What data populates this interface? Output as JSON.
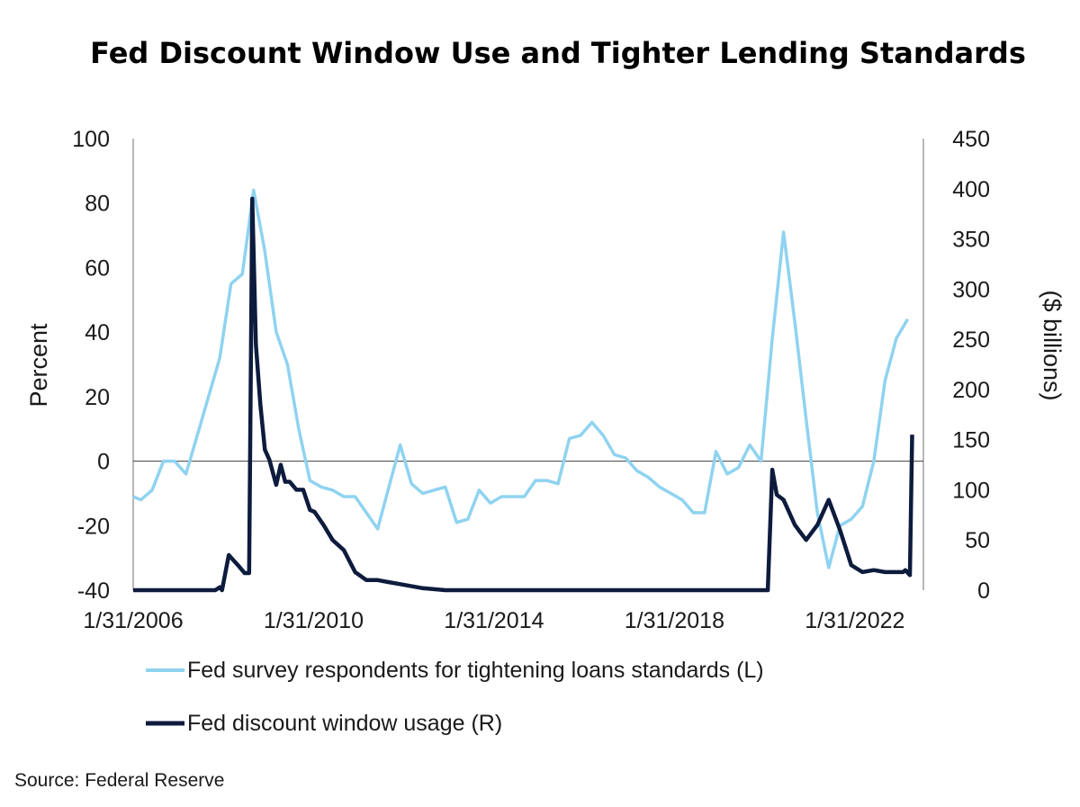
{
  "chart_data": {
    "type": "line",
    "title": "Fed Discount Window Use and Tighter Lending Standards",
    "ylabel_left": "Percent",
    "ylabel_right": "($ billions)",
    "x_ticks": [
      "1/31/2006",
      "1/31/2010",
      "1/31/2014",
      "1/31/2018",
      "1/31/2022"
    ],
    "x_tick_years": [
      2006.08,
      2010.08,
      2014.08,
      2018.08,
      2022.08
    ],
    "xlim": [
      2006.08,
      2023.6
    ],
    "ylim_left": [
      -40,
      100
    ],
    "yticks_left": [
      -40,
      -20,
      0,
      20,
      40,
      60,
      80,
      100
    ],
    "ylim_right": [
      0,
      450
    ],
    "yticks_right": [
      0,
      50,
      100,
      150,
      200,
      250,
      300,
      350,
      400,
      450
    ],
    "series": [
      {
        "name": "Fed survey respondents for tightening loans standards (L)",
        "axis": "left",
        "color": "#8fd3f0",
        "x": [
          2006.08,
          2006.25,
          2006.5,
          2006.75,
          2007.0,
          2007.25,
          2007.5,
          2007.75,
          2008.0,
          2008.25,
          2008.5,
          2008.75,
          2009.0,
          2009.25,
          2009.5,
          2009.75,
          2010.0,
          2010.25,
          2010.5,
          2010.75,
          2011.0,
          2011.25,
          2011.5,
          2011.75,
          2012.0,
          2012.25,
          2012.5,
          2012.75,
          2013.0,
          2013.25,
          2013.5,
          2013.75,
          2014.0,
          2014.25,
          2014.5,
          2014.75,
          2015.0,
          2015.25,
          2015.5,
          2015.75,
          2016.0,
          2016.25,
          2016.5,
          2016.75,
          2017.0,
          2017.25,
          2017.5,
          2017.75,
          2018.0,
          2018.25,
          2018.5,
          2018.75,
          2019.0,
          2019.25,
          2019.5,
          2019.75,
          2020.0,
          2020.25,
          2020.5,
          2020.75,
          2021.0,
          2021.25,
          2021.5,
          2021.75,
          2022.0,
          2022.25,
          2022.5,
          2022.75,
          2023.0,
          2023.25
        ],
        "values": [
          -11,
          -12,
          -9,
          0,
          0,
          -4,
          8,
          20,
          32,
          55,
          58,
          84,
          65,
          40,
          30,
          10,
          -6,
          -8,
          -9,
          -11,
          -11,
          -16,
          -21,
          -8,
          5,
          -7,
          -10,
          -9,
          -8,
          -19,
          -18,
          -9,
          -13,
          -11,
          -11,
          -11,
          -6,
          -6,
          -7,
          7,
          8,
          12,
          8,
          2,
          1,
          -3,
          -5,
          -8,
          -10,
          -12,
          -16,
          -16,
          3,
          -4,
          -2,
          5,
          0,
          38,
          71,
          43,
          13,
          -16,
          -33,
          -20,
          -18,
          -14,
          0,
          25,
          38,
          44
        ]
      },
      {
        "name": "Fed discount window usage (R)",
        "axis": "right",
        "color": "#0d1b3d",
        "x": [
          2006.08,
          2006.5,
          2007.0,
          2007.5,
          2007.75,
          2007.9,
          2008.0,
          2008.05,
          2008.2,
          2008.4,
          2008.55,
          2008.65,
          2008.72,
          2008.8,
          2008.9,
          2009.0,
          2009.1,
          2009.25,
          2009.35,
          2009.45,
          2009.55,
          2009.7,
          2009.85,
          2010.0,
          2010.1,
          2010.3,
          2010.5,
          2010.75,
          2011.0,
          2011.25,
          2011.5,
          2011.75,
          2012.0,
          2012.5,
          2013.0,
          2013.5,
          2014.0,
          2016.0,
          2018.0,
          2019.5,
          2020.0,
          2020.15,
          2020.25,
          2020.35,
          2020.5,
          2020.75,
          2021.0,
          2021.25,
          2021.5,
          2021.75,
          2022.0,
          2022.25,
          2022.5,
          2022.75,
          2023.0,
          2023.15,
          2023.2,
          2023.3,
          2023.35
        ],
        "values": [
          0,
          0,
          0,
          0,
          0,
          0,
          3,
          0,
          35,
          25,
          17,
          17,
          390,
          245,
          185,
          140,
          130,
          105,
          125,
          108,
          108,
          100,
          100,
          80,
          78,
          65,
          50,
          40,
          18,
          10,
          10,
          8,
          6,
          2,
          0,
          0,
          0,
          0,
          0,
          0,
          0,
          0,
          120,
          95,
          90,
          65,
          50,
          65,
          90,
          60,
          25,
          18,
          20,
          18,
          18,
          18,
          20,
          15,
          155
        ]
      }
    ],
    "legend_position": "bottom-left",
    "source": "Source: Federal Reserve"
  }
}
